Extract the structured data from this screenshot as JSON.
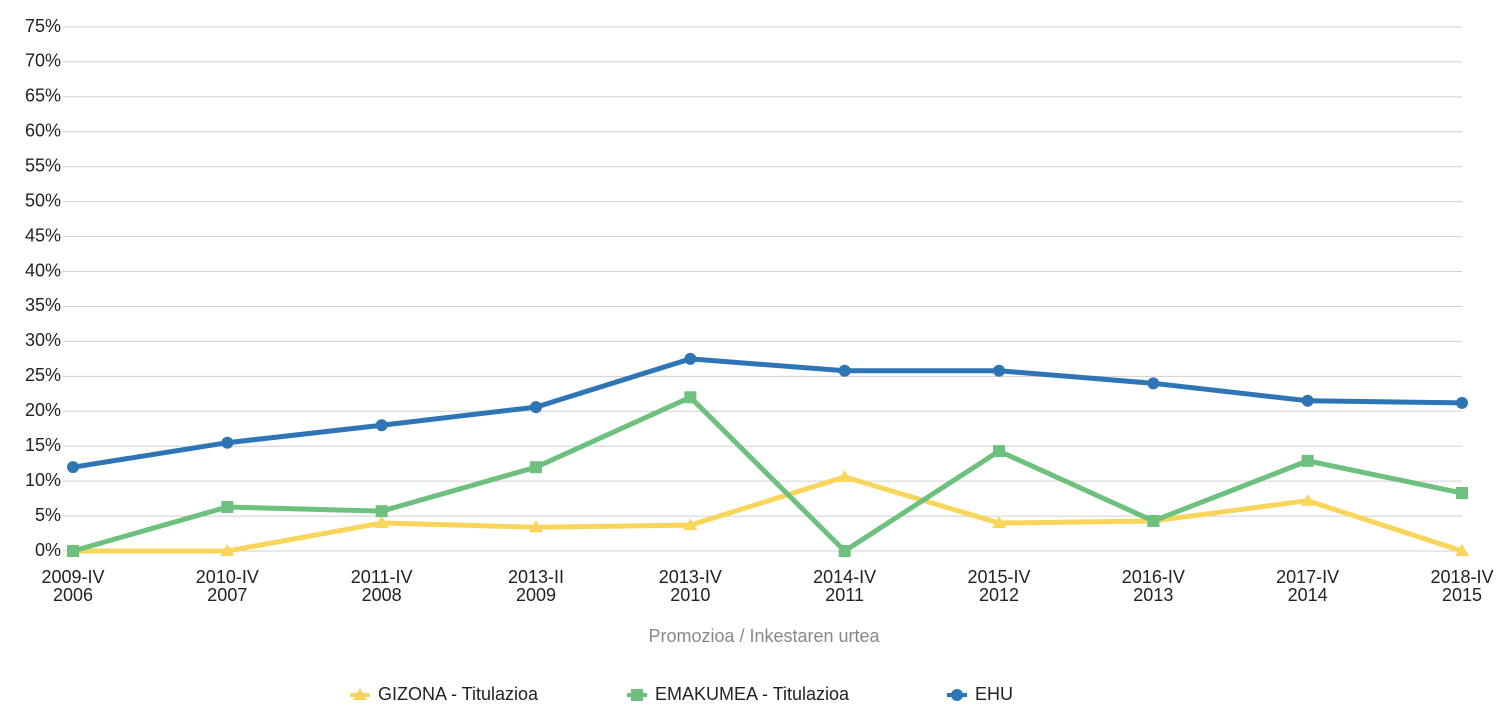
{
  "chart_data": {
    "type": "line",
    "x_label": "Promozioa / Inkestaren urtea",
    "categories": [
      [
        "2009-IV",
        "2006"
      ],
      [
        "2010-IV",
        "2007"
      ],
      [
        "2011-IV",
        "2008"
      ],
      [
        "2013-II",
        "2009"
      ],
      [
        "2013-IV",
        "2010"
      ],
      [
        "2014-IV",
        "2011"
      ],
      [
        "2015-IV",
        "2012"
      ],
      [
        "2016-IV",
        "2013"
      ],
      [
        "2017-IV",
        "2014"
      ],
      [
        "2018-IV",
        "2015"
      ]
    ],
    "series": [
      {
        "name": "GIZONA - Titulazioa",
        "color": "#f9d55b",
        "marker": "triangle",
        "values": [
          0,
          0,
          4.0,
          3.4,
          3.7,
          10.6,
          4.0,
          4.3,
          7.2,
          0
        ]
      },
      {
        "name": "EMAKUMEA - Titulazioa",
        "color": "#6dc07e",
        "marker": "square",
        "values": [
          0,
          6.3,
          5.7,
          12.0,
          22.0,
          0,
          14.3,
          4.3,
          12.9,
          8.3
        ]
      },
      {
        "name": "EHU",
        "color": "#2e75b6",
        "marker": "circle",
        "values": [
          12.0,
          15.5,
          18.0,
          20.6,
          27.5,
          25.8,
          25.8,
          24.0,
          21.5,
          21.2
        ]
      }
    ],
    "ylim": [
      0,
      75
    ],
    "yticks": [
      {
        "value": 0,
        "label": "0%"
      },
      {
        "value": 5,
        "label": "5%"
      },
      {
        "value": 10,
        "label": "10%"
      },
      {
        "value": 15,
        "label": "15%"
      },
      {
        "value": 20,
        "label": "20%"
      },
      {
        "value": 25,
        "label": "25%"
      },
      {
        "value": 30,
        "label": "30%"
      },
      {
        "value": 35,
        "label": "35%"
      },
      {
        "value": 40,
        "label": "40%"
      },
      {
        "value": 45,
        "label": "45%"
      },
      {
        "value": 50,
        "label": "50%"
      },
      {
        "value": 55,
        "label": "55%"
      },
      {
        "value": 60,
        "label": "60%"
      },
      {
        "value": 65,
        "label": "65%"
      },
      {
        "value": 70,
        "label": "70%"
      },
      {
        "value": 75,
        "label": "75%"
      }
    ],
    "grid": true,
    "legend": "bottom"
  }
}
